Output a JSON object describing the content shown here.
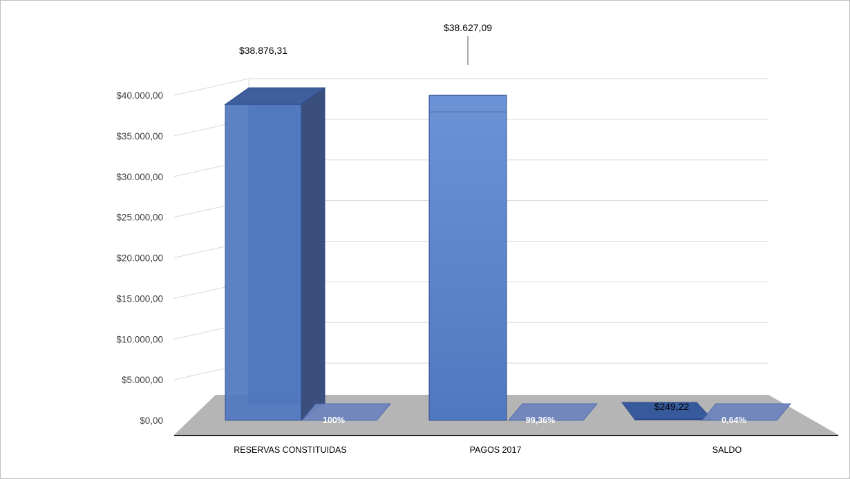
{
  "chart_data": {
    "type": "bar",
    "categories": [
      "RESERVAS CONSTITUIDAS",
      "PAGOS 2017",
      "SALDO"
    ],
    "series": [
      {
        "values": [
          38876.31,
          38627.09,
          249.22
        ]
      },
      {
        "values": [
          100,
          99.36,
          0.64
        ]
      }
    ],
    "value_labels": [
      "$38.876,31",
      "$38.627,09",
      "$249,22"
    ],
    "percent_labels": [
      "100%",
      "99,36%",
      "0,64%"
    ],
    "y_ticks": [
      "$0,00",
      "$5.000,00",
      "$10.000,00",
      "$15.000,00",
      "$20.000,00",
      "$25.000,00",
      "$30.000,00",
      "$35.000,00",
      "$40.000,00"
    ],
    "ylim": [
      0,
      40000
    ],
    "grid": true,
    "style": "3d-column",
    "colors": {
      "bar_front": "#5078c0",
      "bar_front_light": "#6b93d6",
      "bar_side": "#3a4f7c",
      "bar_edge": "#2f4a8a",
      "floor": "#b5b5b5",
      "gridline": "#d9d9d9"
    }
  }
}
